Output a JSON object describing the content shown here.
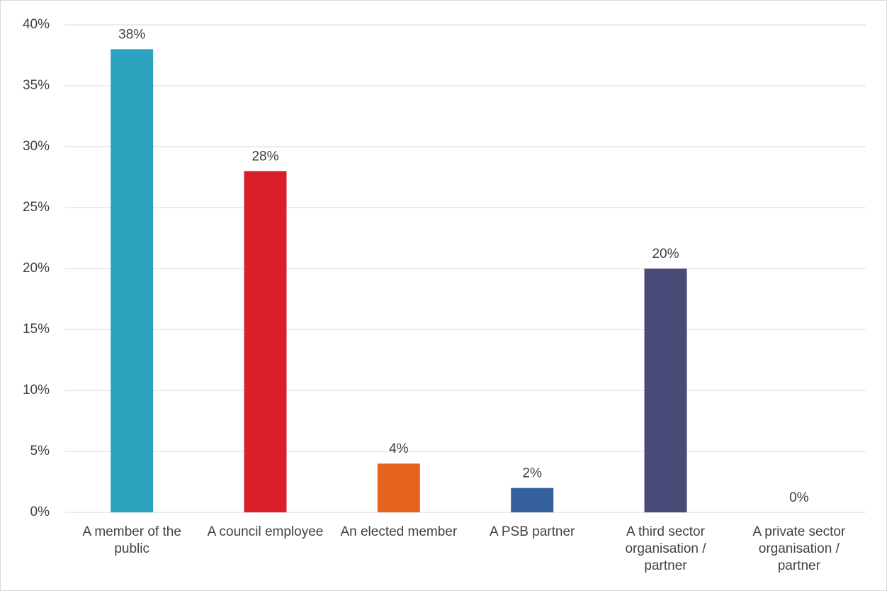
{
  "chart_data": {
    "type": "bar",
    "categories": [
      "A member of the public",
      "A council employee",
      "An elected member",
      "A PSB partner",
      "A third sector organisation / partner",
      "A private sector organisation / partner"
    ],
    "values": [
      38,
      28,
      4,
      2,
      20,
      0
    ],
    "value_labels": [
      "38%",
      "28%",
      "4%",
      "2%",
      "20%",
      "0%"
    ],
    "colors": [
      "#2ea3c0",
      "#d9202a",
      "#e8621f",
      "#34619e",
      "#484b78",
      "#7f7f7f"
    ],
    "ylim": [
      0,
      40
    ],
    "yticks": [
      {
        "value": 0,
        "label": "0%"
      },
      {
        "value": 5,
        "label": "5%"
      },
      {
        "value": 10,
        "label": "10%"
      },
      {
        "value": 15,
        "label": "15%"
      },
      {
        "value": 20,
        "label": "20%"
      },
      {
        "value": 25,
        "label": "25%"
      },
      {
        "value": 30,
        "label": "30%"
      },
      {
        "value": 35,
        "label": "35%"
      },
      {
        "value": 40,
        "label": "40%"
      }
    ],
    "grid": true
  }
}
